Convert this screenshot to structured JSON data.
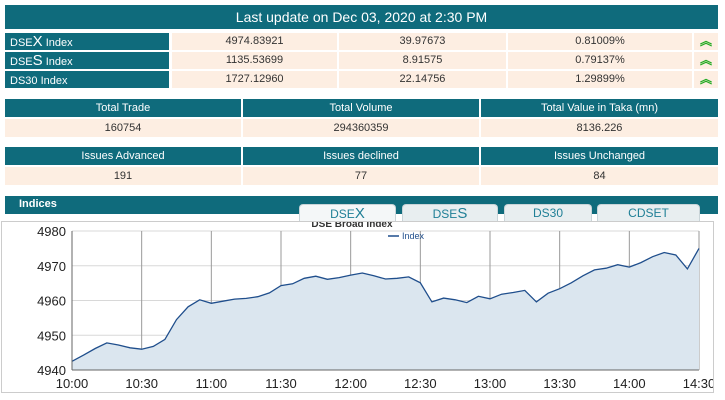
{
  "header": {
    "last_update": "Last update on Dec 03, 2020 at 2:30 PM"
  },
  "indices": [
    {
      "prefix": "DSE",
      "letter": "X",
      "suffix": " Index",
      "value": "4974.83921",
      "change": "39.97673",
      "percent": "0.81009%",
      "trend_icon": "double-chevron-up-icon",
      "trend_symbol": "︽"
    },
    {
      "prefix": "DSE",
      "letter": "S",
      "suffix": " Index",
      "value": "1135.53699",
      "change": "8.91575",
      "percent": "0.79137%",
      "trend_icon": "double-chevron-up-icon",
      "trend_symbol": "︽"
    },
    {
      "prefix": "DS30",
      "letter": "",
      "suffix": " Index",
      "value": "1727.12960",
      "change": "22.14756",
      "percent": "1.29899%",
      "trend_icon": "double-chevron-up-icon",
      "trend_symbol": "︽"
    }
  ],
  "trade_stats": {
    "headers": [
      "Total Trade",
      "Total Volume",
      "Total Value in Taka (mn)"
    ],
    "values": [
      "160754",
      "294360359",
      "8136.226"
    ]
  },
  "issues_stats": {
    "headers": [
      "Issues Advanced",
      "Issues declined",
      "Issues Unchanged"
    ],
    "values": [
      "191",
      "77",
      "84"
    ]
  },
  "indices_panel": {
    "title": "Indices",
    "tabs": [
      {
        "prefix": "DSE",
        "letter": "X"
      },
      {
        "prefix": "DSE",
        "letter": "S"
      },
      {
        "prefix": "DS30",
        "letter": ""
      },
      {
        "prefix": "CDSET",
        "letter": ""
      }
    ],
    "active_tab": 0
  },
  "colors": {
    "header_teal": "#0f6b7c",
    "cell_bg": "#fdeee2",
    "up_green": "#22aa22",
    "line_blue": "#1f4e8c",
    "area_fill": "#dbe6ef"
  },
  "chart_data": {
    "type": "area",
    "title": "DSE Broad Index",
    "legend": "top-center",
    "ylim": [
      4940,
      4980
    ],
    "yticks": [
      4940,
      4950,
      4960,
      4970,
      4980
    ],
    "xlim": [
      0,
      270
    ],
    "xticks": [
      "10:00",
      "10:30",
      "11:00",
      "11:30",
      "12:00",
      "12:30",
      "13:00",
      "13:30",
      "14:00",
      "14:30"
    ],
    "grid": true,
    "series": [
      {
        "name": "Index",
        "x": [
          0,
          5,
          10,
          15,
          20,
          25,
          30,
          35,
          40,
          45,
          50,
          55,
          60,
          65,
          70,
          75,
          80,
          85,
          90,
          95,
          100,
          105,
          110,
          115,
          120,
          125,
          130,
          135,
          140,
          145,
          150,
          155,
          160,
          165,
          170,
          175,
          180,
          185,
          190,
          195,
          200,
          205,
          210,
          215,
          220,
          225,
          230,
          235,
          240,
          245,
          250,
          255,
          260,
          265,
          270
        ],
        "values": [
          4942.5,
          4944.3,
          4946.2,
          4947.8,
          4947.2,
          4946.4,
          4946.0,
          4946.8,
          4948.8,
          4954.5,
          4958.2,
          4960.2,
          4959.2,
          4959.8,
          4960.4,
          4960.6,
          4961.1,
          4962.2,
          4964.3,
          4964.8,
          4966.4,
          4967.0,
          4966.1,
          4966.6,
          4967.3,
          4967.9,
          4967.1,
          4966.2,
          4966.4,
          4966.8,
          4965.1,
          4959.6,
          4960.7,
          4960.2,
          4959.4,
          4961.2,
          4960.5,
          4961.8,
          4962.3,
          4962.9,
          4959.6,
          4962.1,
          4963.4,
          4965.1,
          4967.1,
          4968.8,
          4969.3,
          4970.3,
          4969.6,
          4970.9,
          4972.6,
          4973.8,
          4973.1,
          4969.1,
          4975.0
        ]
      }
    ]
  }
}
